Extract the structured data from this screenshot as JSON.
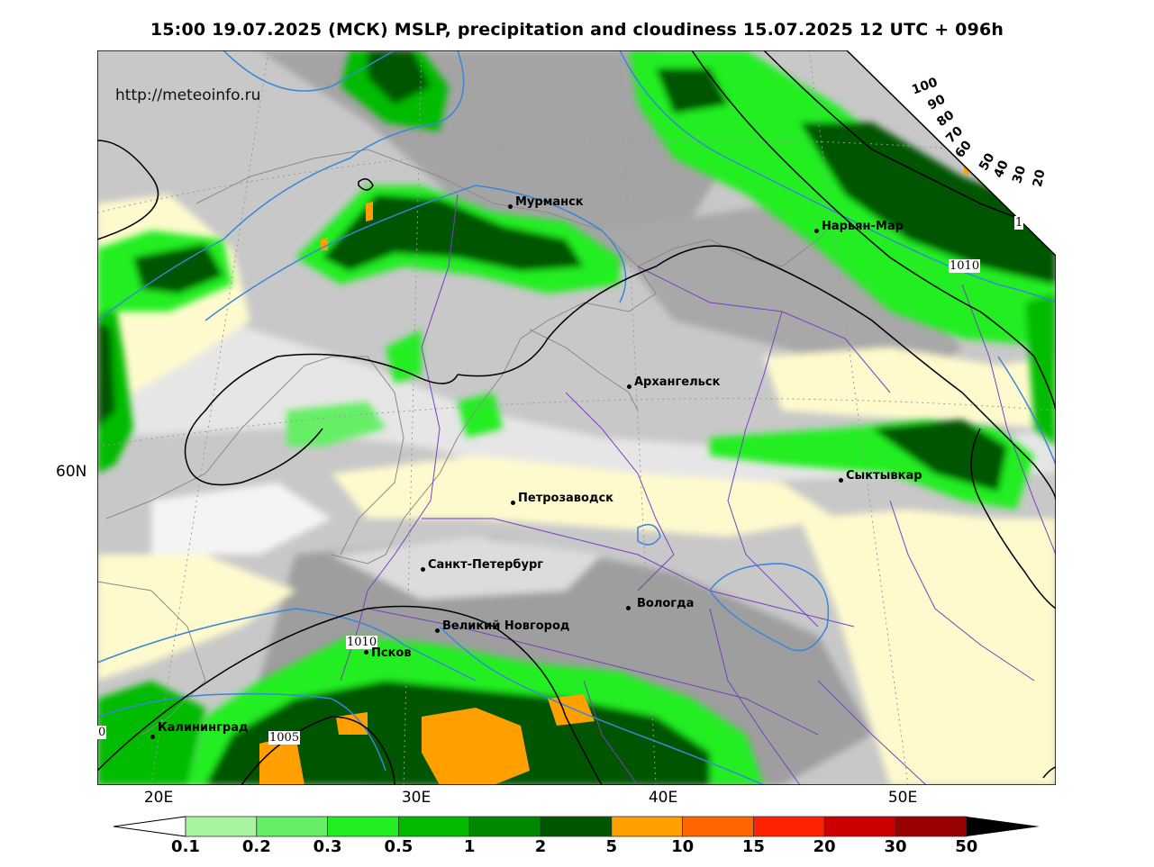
{
  "title": "15:00 19.07.2025 (МСК) MSLP, precipitation and cloudiness 15.07.2025 12 UTC + 096h",
  "watermark": "http://meteoinfo.ru",
  "axes": {
    "x_ticks": [
      "20E",
      "30E",
      "40E",
      "50E"
    ],
    "y_ticks": [
      "60N"
    ]
  },
  "cities": [
    {
      "name": "Мурманск"
    },
    {
      "name": "Нарьян-Мар"
    },
    {
      "name": "Архангельск"
    },
    {
      "name": "Сыктывкар"
    },
    {
      "name": "Петрозаводск"
    },
    {
      "name": "Санкт-Петербург"
    },
    {
      "name": "Вологда"
    },
    {
      "name": "Великий Новгород"
    },
    {
      "name": "Псков"
    },
    {
      "name": "Калининград"
    }
  ],
  "isobar_labels": [
    "1010",
    "1010",
    "1005",
    "0",
    "1"
  ],
  "cloud_scale": [
    "100",
    "90",
    "80",
    "70",
    "60",
    "50",
    "40",
    "30",
    "20"
  ],
  "precip_scale": {
    "labels": [
      "0.1",
      "0.2",
      "0.3",
      "0.5",
      "1",
      "2",
      "5",
      "10",
      "15",
      "20",
      "30",
      "50"
    ],
    "colors": [
      "#ffffff",
      "#a8f5a0",
      "#66ee66",
      "#22ee22",
      "#00bb00",
      "#008800",
      "#005500",
      "#ffa000",
      "#ff6600",
      "#ff2200",
      "#cc0000",
      "#990000",
      "#000000"
    ]
  },
  "colors": {
    "land_clear": "#fffacd",
    "cloud_light": "#e6e6e6",
    "cloud_mid": "#c4c4c4",
    "cloud_dark": "#a4a4a4",
    "isobar": "#000000",
    "isotherm": "#3a86d8",
    "border": "#7b3fbf",
    "coast": "#8a8a8a"
  }
}
